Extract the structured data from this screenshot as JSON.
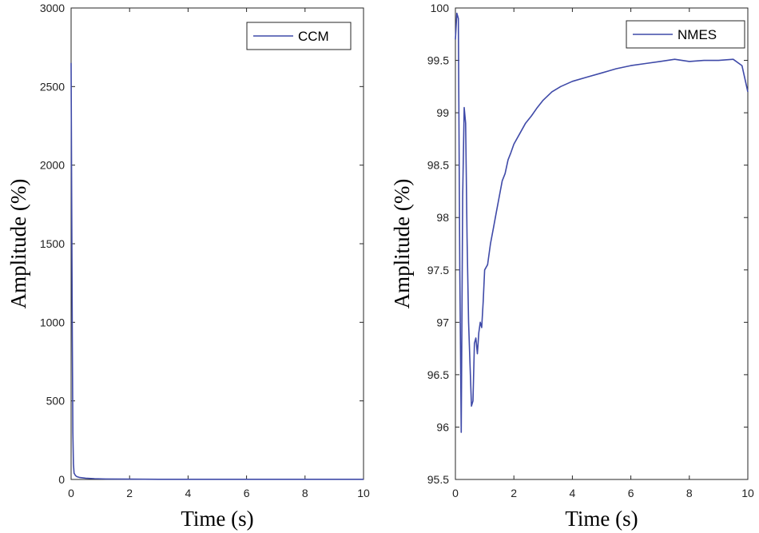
{
  "chart_data": [
    {
      "type": "line",
      "title": "",
      "xlabel": "Time  (s)",
      "ylabel": "Amplitude  (%)",
      "xlim": [
        0,
        10
      ],
      "ylim": [
        0,
        3000
      ],
      "xticks": [
        0,
        2,
        4,
        6,
        8,
        10
      ],
      "xtick_labels": [
        "0",
        "2",
        "4",
        "6",
        "8",
        "10"
      ],
      "yticks": [
        0,
        500,
        1000,
        1500,
        2000,
        2500,
        3000
      ],
      "ytick_labels": [
        "0",
        "500",
        "1000",
        "1500",
        "2000",
        "2500",
        "3000"
      ],
      "grid": false,
      "legend_position": "top-right",
      "series": [
        {
          "name": "CCM",
          "color": "#3f4aa8",
          "x": [
            0,
            0.02,
            0.04,
            0.06,
            0.08,
            0.1,
            0.15,
            0.2,
            0.3,
            0.5,
            0.8,
            1.2,
            2,
            3,
            4,
            6,
            8,
            10
          ],
          "y": [
            2650,
            1800,
            900,
            300,
            100,
            40,
            25,
            18,
            12,
            8,
            5,
            3,
            2,
            1,
            1,
            1,
            1,
            1
          ]
        }
      ]
    },
    {
      "type": "line",
      "title": "",
      "xlabel": "Time  (s)",
      "ylabel": "Amplitude  (%)",
      "xlim": [
        0,
        10
      ],
      "ylim": [
        95.5,
        100
      ],
      "xticks": [
        0,
        2,
        4,
        6,
        8,
        10
      ],
      "xtick_labels": [
        "0",
        "2",
        "4",
        "6",
        "8",
        "10"
      ],
      "yticks": [
        95.5,
        96,
        96.5,
        97,
        97.5,
        98,
        98.5,
        99,
        99.5,
        100
      ],
      "ytick_labels": [
        "95.5",
        "96",
        "96.5",
        "97",
        "97.5",
        "98",
        "98.5",
        "99",
        "99.5",
        "100"
      ],
      "grid": false,
      "legend_position": "top-right",
      "series": [
        {
          "name": "NMES",
          "color": "#3f4aa8",
          "x": [
            0,
            0.05,
            0.1,
            0.15,
            0.2,
            0.25,
            0.3,
            0.35,
            0.4,
            0.45,
            0.5,
            0.55,
            0.6,
            0.65,
            0.7,
            0.75,
            0.8,
            0.85,
            0.9,
            0.95,
            1.0,
            1.1,
            1.2,
            1.3,
            1.4,
            1.5,
            1.6,
            1.7,
            1.8,
            1.9,
            2.0,
            2.2,
            2.4,
            2.6,
            2.8,
            3.0,
            3.3,
            3.6,
            4.0,
            4.5,
            5.0,
            5.5,
            6.0,
            6.5,
            7.0,
            7.5,
            8.0,
            8.5,
            9.0,
            9.5,
            9.8,
            10.0
          ],
          "y": [
            99.7,
            99.95,
            99.9,
            97.5,
            95.95,
            98.2,
            99.05,
            98.9,
            97.8,
            97.0,
            96.6,
            96.2,
            96.25,
            96.8,
            96.85,
            96.7,
            96.9,
            97.0,
            96.95,
            97.2,
            97.5,
            97.55,
            97.75,
            97.9,
            98.05,
            98.2,
            98.35,
            98.42,
            98.55,
            98.62,
            98.7,
            98.8,
            98.9,
            98.97,
            99.05,
            99.12,
            99.2,
            99.25,
            99.3,
            99.34,
            99.38,
            99.42,
            99.45,
            99.47,
            99.49,
            99.51,
            99.49,
            99.5,
            99.5,
            99.51,
            99.45,
            99.2
          ]
        }
      ]
    }
  ]
}
